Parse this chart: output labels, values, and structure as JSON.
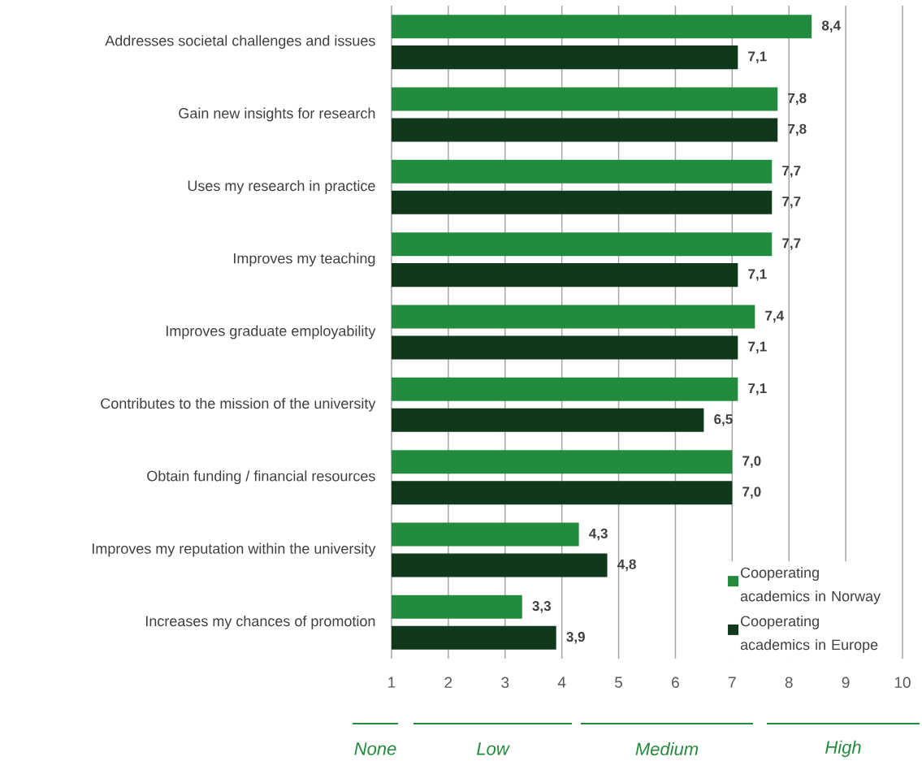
{
  "chart_data": {
    "type": "bar",
    "orientation": "horizontal",
    "categories": [
      "Addresses societal challenges and issues",
      "Gain new insights for research",
      "Uses my research in practice",
      "Improves my teaching",
      "Improves graduate employability",
      "Contributes to the mission of the university",
      "Obtain funding / financial resources",
      "Improves my reputation within the university",
      "Increases my chances of promotion"
    ],
    "series": [
      {
        "name": "Cooperating academics in Norway",
        "color": "#238B3D",
        "values": [
          8.4,
          7.8,
          7.7,
          7.7,
          7.4,
          7.1,
          7.0,
          4.3,
          3.3
        ],
        "value_labels": [
          "8,4",
          "7,8",
          "7,7",
          "7,7",
          "7,4",
          "7,1",
          "7,0",
          "4,3",
          "3,3"
        ]
      },
      {
        "name": "Cooperating academics in Europe",
        "color": "#10381A",
        "values": [
          7.1,
          7.8,
          7.7,
          7.1,
          7.1,
          6.5,
          7.0,
          4.8,
          3.9
        ],
        "value_labels": [
          "7,1",
          "7,8",
          "7,7",
          "7,1",
          "7,1",
          "6,5",
          "7,0",
          "4,8",
          "3,9"
        ]
      }
    ],
    "xlim": [
      1,
      10
    ],
    "xticks": [
      1,
      2,
      3,
      4,
      5,
      6,
      7,
      8,
      9,
      10
    ],
    "grid": "x",
    "legend": "bottom right",
    "annotations": [
      "None",
      "Low",
      "Medium",
      "High"
    ]
  }
}
